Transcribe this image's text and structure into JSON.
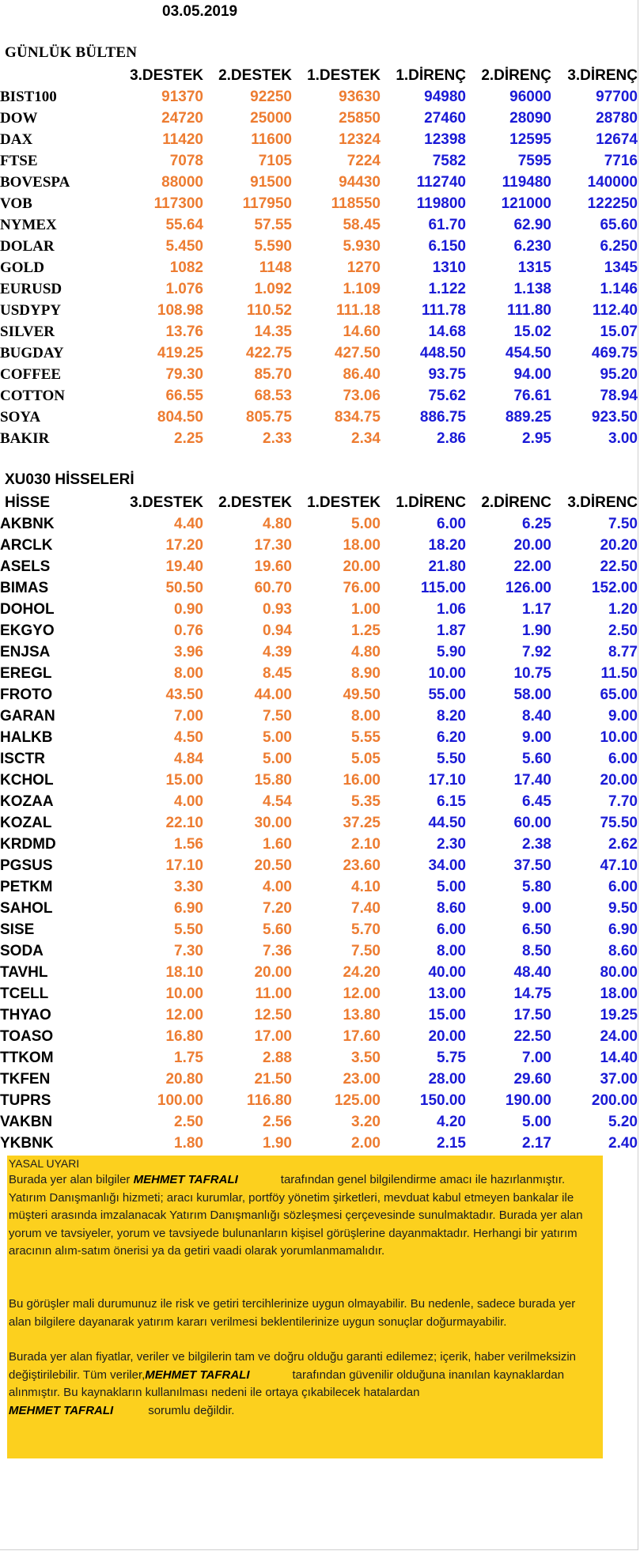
{
  "date": "03.05.2019",
  "bulten": {
    "title": "GÜNLÜK BÜLTEN",
    "headers": [
      "",
      "3.DESTEK",
      "2.DESTEK",
      "1.DESTEK",
      "1.DİRENÇ",
      "2.DİRENÇ",
      "3.DİRENÇ"
    ],
    "rows": [
      {
        "name": "BIST100",
        "v": [
          "91370",
          "92250",
          "93630",
          "94980",
          "96000",
          "97700"
        ]
      },
      {
        "name": "DOW",
        "v": [
          "24720",
          "25000",
          "25850",
          "27460",
          "28090",
          "28780"
        ]
      },
      {
        "name": "DAX",
        "v": [
          "11420",
          "11600",
          "12324",
          "12398",
          "12595",
          "12674"
        ]
      },
      {
        "name": "FTSE",
        "v": [
          "7078",
          "7105",
          "7224",
          "7582",
          "7595",
          "7716"
        ]
      },
      {
        "name": "BOVESPA",
        "v": [
          "88000",
          "91500",
          "94430",
          "112740",
          "119480",
          "140000"
        ]
      },
      {
        "name": "VOB",
        "v": [
          "117300",
          "117950",
          "118550",
          "119800",
          "121000",
          "122250"
        ]
      },
      {
        "name": "NYMEX",
        "v": [
          "55.64",
          "57.55",
          "58.45",
          "61.70",
          "62.90",
          "65.60"
        ]
      },
      {
        "name": "DOLAR",
        "v": [
          "5.450",
          "5.590",
          "5.930",
          "6.150",
          "6.230",
          "6.250"
        ]
      },
      {
        "name": "GOLD",
        "v": [
          "1082",
          "1148",
          "1270",
          "1310",
          "1315",
          "1345"
        ]
      },
      {
        "name": "EURUSD",
        "v": [
          "1.076",
          "1.092",
          "1.109",
          "1.122",
          "1.138",
          "1.146"
        ]
      },
      {
        "name": "USDYPY",
        "v": [
          "108.98",
          "110.52",
          "111.18",
          "111.78",
          "111.80",
          "112.40"
        ]
      },
      {
        "name": "SILVER",
        "v": [
          "13.76",
          "14.35",
          "14.60",
          "14.68",
          "15.02",
          "15.07"
        ]
      },
      {
        "name": "BUGDAY",
        "v": [
          "419.25",
          "422.75",
          "427.50",
          "448.50",
          "454.50",
          "469.75"
        ]
      },
      {
        "name": "COFFEE",
        "v": [
          "79.30",
          "85.70",
          "86.40",
          "93.75",
          "94.00",
          "95.20"
        ]
      },
      {
        "name": "COTTON",
        "v": [
          "66.55",
          "68.53",
          "73.06",
          "75.62",
          "76.61",
          "78.94"
        ]
      },
      {
        "name": "SOYA",
        "v": [
          "804.50",
          "805.75",
          "834.75",
          "886.75",
          "889.25",
          "923.50"
        ]
      },
      {
        "name": "BAKIR",
        "v": [
          "2.25",
          "2.33",
          "2.34",
          "2.86",
          "2.95",
          "3.00"
        ]
      }
    ]
  },
  "xu030": {
    "title": "XU030 HİSSELERİ",
    "headers": [
      "HİSSE",
      "3.DESTEK",
      "2.DESTEK",
      "1.DESTEK",
      "1.DİRENC",
      "2.DİRENC",
      "3.DİRENC"
    ],
    "rows": [
      {
        "name": "AKBNK",
        "v": [
          "4.40",
          "4.80",
          "5.00",
          "6.00",
          "6.25",
          "7.50"
        ]
      },
      {
        "name": "ARCLK",
        "v": [
          "17.20",
          "17.30",
          "18.00",
          "18.20",
          "20.00",
          "20.20"
        ]
      },
      {
        "name": "ASELS",
        "v": [
          "19.40",
          "19.60",
          "20.00",
          "21.80",
          "22.00",
          "22.50"
        ]
      },
      {
        "name": "BIMAS",
        "v": [
          "50.50",
          "60.70",
          "76.00",
          "115.00",
          "126.00",
          "152.00"
        ]
      },
      {
        "name": "DOHOL",
        "v": [
          "0.90",
          "0.93",
          "1.00",
          "1.06",
          "1.17",
          "1.20"
        ]
      },
      {
        "name": "EKGYO",
        "v": [
          "0.76",
          "0.94",
          "1.25",
          "1.87",
          "1.90",
          "2.50"
        ]
      },
      {
        "name": "ENJSA",
        "v": [
          "3.96",
          "4.39",
          "4.80",
          "5.90",
          "7.92",
          "8.77"
        ]
      },
      {
        "name": "EREGL",
        "v": [
          "8.00",
          "8.45",
          "8.90",
          "10.00",
          "10.75",
          "11.50"
        ]
      },
      {
        "name": "FROTO",
        "v": [
          "43.50",
          "44.00",
          "49.50",
          "55.00",
          "58.00",
          "65.00"
        ]
      },
      {
        "name": "GARAN",
        "v": [
          "7.00",
          "7.50",
          "8.00",
          "8.20",
          "8.40",
          "9.00"
        ]
      },
      {
        "name": "HALKB",
        "v": [
          "4.50",
          "5.00",
          "5.55",
          "6.20",
          "9.00",
          "10.00"
        ]
      },
      {
        "name": "ISCTR",
        "v": [
          "4.84",
          "5.00",
          "5.05",
          "5.50",
          "5.60",
          "6.00"
        ]
      },
      {
        "name": "KCHOL",
        "v": [
          "15.00",
          "15.80",
          "16.00",
          "17.10",
          "17.40",
          "20.00"
        ]
      },
      {
        "name": "KOZAA",
        "v": [
          "4.00",
          "4.54",
          "5.35",
          "6.15",
          "6.45",
          "7.70"
        ]
      },
      {
        "name": "KOZAL",
        "v": [
          "22.10",
          "30.00",
          "37.25",
          "44.50",
          "60.00",
          "75.50"
        ]
      },
      {
        "name": "KRDMD",
        "v": [
          "1.56",
          "1.60",
          "2.10",
          "2.30",
          "2.38",
          "2.62"
        ]
      },
      {
        "name": "PGSUS",
        "v": [
          "17.10",
          "20.50",
          "23.60",
          "34.00",
          "37.50",
          "47.10"
        ]
      },
      {
        "name": "PETKM",
        "v": [
          "3.30",
          "4.00",
          "4.10",
          "5.00",
          "5.80",
          "6.00"
        ]
      },
      {
        "name": "SAHOL",
        "v": [
          "6.90",
          "7.20",
          "7.40",
          "8.60",
          "9.00",
          "9.50"
        ]
      },
      {
        "name": "SISE",
        "v": [
          "5.50",
          "5.60",
          "5.70",
          "6.00",
          "6.50",
          "6.90"
        ]
      },
      {
        "name": "SODA",
        "v": [
          "7.30",
          "7.36",
          "7.50",
          "8.00",
          "8.50",
          "8.60"
        ]
      },
      {
        "name": "TAVHL",
        "v": [
          "18.10",
          "20.00",
          "24.20",
          "40.00",
          "48.40",
          "80.00"
        ]
      },
      {
        "name": "TCELL",
        "v": [
          "10.00",
          "11.00",
          "12.00",
          "13.00",
          "14.75",
          "18.00"
        ]
      },
      {
        "name": "THYAO",
        "v": [
          "12.00",
          "12.50",
          "13.80",
          "15.00",
          "17.50",
          "19.25"
        ]
      },
      {
        "name": "TOASO",
        "v": [
          "16.80",
          "17.00",
          "17.60",
          "20.00",
          "22.50",
          "24.00"
        ]
      },
      {
        "name": "TTKOM",
        "v": [
          "1.75",
          "2.88",
          "3.50",
          "5.75",
          "7.00",
          "14.40"
        ]
      },
      {
        "name": "TKFEN",
        "v": [
          "20.80",
          "21.50",
          "23.00",
          "28.00",
          "29.60",
          "37.00"
        ]
      },
      {
        "name": "TUPRS",
        "v": [
          "100.00",
          "116.80",
          "125.00",
          "150.00",
          "190.00",
          "200.00"
        ]
      },
      {
        "name": "VAKBN",
        "v": [
          "2.50",
          "2.56",
          "3.20",
          "4.20",
          "5.00",
          "5.20"
        ]
      },
      {
        "name": "YKBNK",
        "v": [
          "1.80",
          "1.90",
          "2.00",
          "2.15",
          "2.17",
          "2.40"
        ]
      }
    ]
  },
  "disclaimer": {
    "title": "YASAL UYARI",
    "author": "MEHMET TAFRALI",
    "p1_a": "Burada yer alan bilgiler",
    "p1_b": "tarafından genel bilgilendirme amacı ile",
    "p1_c": "hazırlanmıştır. Yatırım Danışmanlığı hizmeti; aracı kurumlar, portföy yönetim şirketleri, mevduat kabul etmeyen bankalar ile müşteri arasında imzalanacak Yatırım Danışmanlığı sözleşmesi çerçevesinde sunulmaktadır. Burada yer alan yorum ve tavsiyeler, yorum ve tavsiyede bulunanların kişisel görüşlerine dayanmaktadır. Herhangi bir yatırım aracının alım-satım önerisi ya da getiri vaadi olarak yorumlanmamalıdır.",
    "p2": "Bu görüşler mali durumunuz ile risk ve getiri tercihlerinize uygun olmayabilir. Bu nedenle, sadece burada yer alan bilgilere dayanarak yatırım kararı verilmesi beklentilerinize uygun sonuçlar doğurmayabilir.",
    "p3_a": "Burada yer alan fiyatlar, veriler ve bilgilerin tam ve doğru olduğu garanti edilemez; içerik, haber verilmeksizin değiştirilebilir. Tüm veriler,",
    "p3_b": "tarafından güvenilir olduğuna inanılan kaynaklardan alınmıştır. Bu kaynakların kullanılması nedeni ile ortaya çıkabilecek hatalardan",
    "p3_c": "sorumlu değildir."
  }
}
